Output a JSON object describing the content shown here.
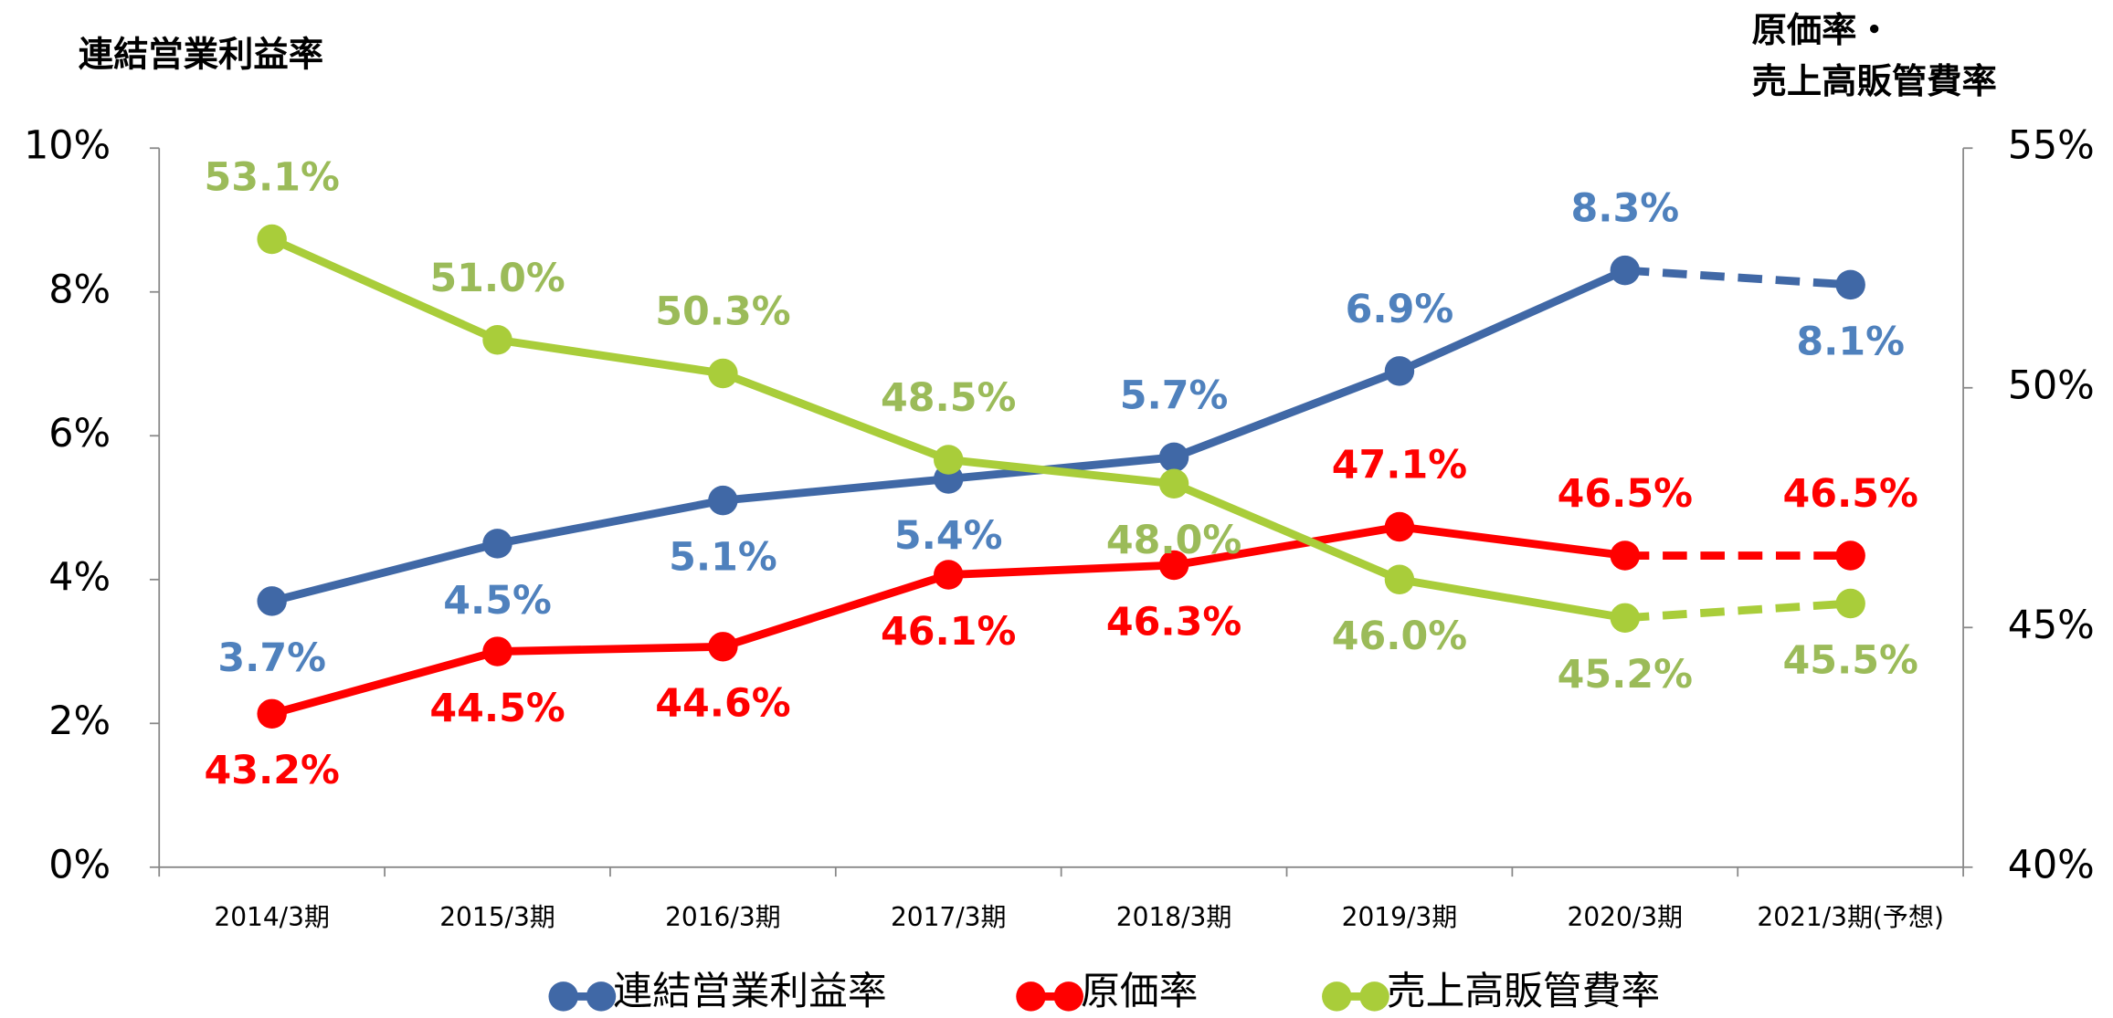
{
  "chart_data": {
    "type": "line",
    "ylabel": "連結営業利益率",
    "y2label": [
      "原価率・",
      "売上高販管費率"
    ],
    "categories": [
      "2014/3期",
      "2015/3期",
      "2016/3期",
      "2017/3期",
      "2018/3期",
      "2019/3期",
      "2020/3期",
      "2021/3期(予想)"
    ],
    "ylim": [
      0,
      10
    ],
    "yticks": [
      {
        "value": 0,
        "label": "0%"
      },
      {
        "value": 2,
        "label": "2%"
      },
      {
        "value": 4,
        "label": "4%"
      },
      {
        "value": 6,
        "label": "6%"
      },
      {
        "value": 8,
        "label": "8%"
      },
      {
        "value": 10,
        "label": "10%"
      }
    ],
    "y2lim": [
      40,
      55
    ],
    "y2ticks": [
      {
        "value": 40,
        "label": "40%"
      },
      {
        "value": 45,
        "label": "45%"
      },
      {
        "value": 50,
        "label": "50%"
      },
      {
        "value": 55,
        "label": "55%"
      }
    ],
    "grid": false,
    "legend": "bottom",
    "dashed_last_segment": true,
    "series": [
      {
        "name": "連結営業利益率",
        "color": "#4068a6",
        "label_color": "#4f81bd",
        "axis": "y",
        "values": [
          3.7,
          4.5,
          5.1,
          5.4,
          5.7,
          6.9,
          8.3,
          8.1
        ],
        "value_labels": [
          "3.7%",
          "4.5%",
          "5.1%",
          "5.4%",
          "5.7%",
          "6.9%",
          "8.3%",
          "8.1%"
        ]
      },
      {
        "name": "原価率",
        "color": "#ff0000",
        "label_color": "#ff0000",
        "axis": "y2",
        "values": [
          43.2,
          44.5,
          44.6,
          46.1,
          46.3,
          47.1,
          46.5,
          46.5
        ],
        "value_labels": [
          "43.2%",
          "44.5%",
          "44.6%",
          "46.1%",
          "46.3%",
          "47.1%",
          "46.5%",
          "46.5%"
        ]
      },
      {
        "name": "売上高販管費率",
        "color": "#a9cd3a",
        "label_color": "#9bbb59",
        "axis": "y2",
        "values": [
          53.1,
          51.0,
          50.3,
          48.5,
          48.0,
          46.0,
          45.2,
          45.5
        ],
        "value_labels": [
          "53.1%",
          "51.0%",
          "50.3%",
          "48.5%",
          "48.0%",
          "46.0%",
          "45.2%",
          "45.5%"
        ]
      }
    ]
  }
}
